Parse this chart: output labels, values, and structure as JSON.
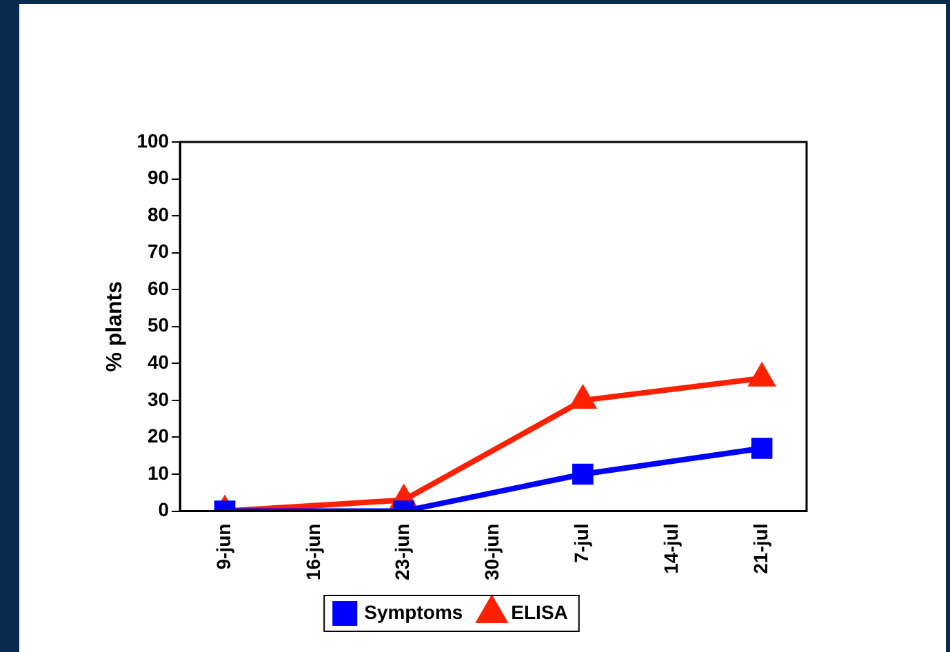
{
  "chart_data": {
    "type": "line",
    "ylabel": "% plants",
    "categories": [
      "9-jun",
      "16-jun",
      "23-jun",
      "30-jun",
      "7-jul",
      "14-jul",
      "21-jul"
    ],
    "series": [
      {
        "name": "Symptoms",
        "color": "#0000ff",
        "marker": "square",
        "values": [
          0,
          null,
          0,
          null,
          10,
          null,
          17
        ]
      },
      {
        "name": "ELISA",
        "color": "#ff2000",
        "marker": "triangle",
        "values": [
          0,
          null,
          3,
          null,
          30,
          null,
          36
        ]
      }
    ],
    "ylim": [
      0,
      100
    ],
    "yticks": [
      0,
      10,
      20,
      30,
      40,
      50,
      60,
      70,
      80,
      90,
      100
    ],
    "grid": false,
    "legend": "bottom",
    "line_style": "solid"
  }
}
